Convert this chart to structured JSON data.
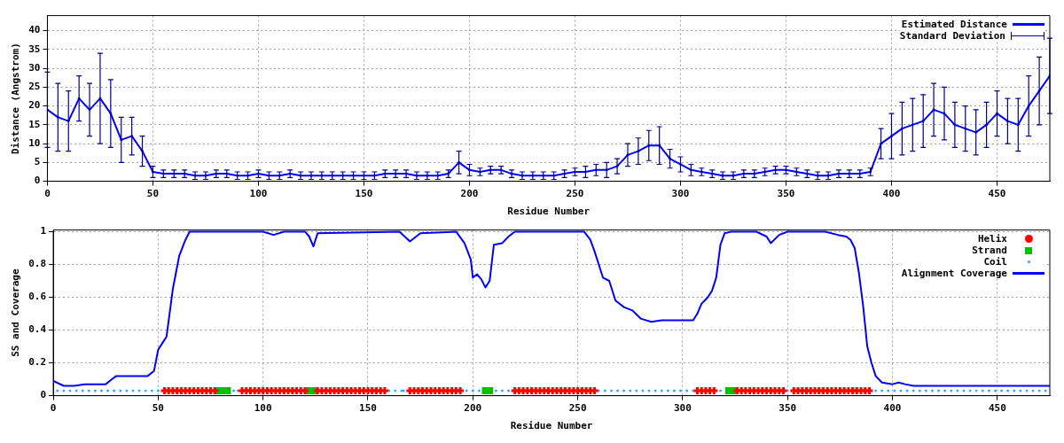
{
  "chart_data": [
    {
      "type": "line",
      "xlabel": "Residue Number",
      "ylabel": "Distance (Angstrom)",
      "xlim": [
        0,
        475
      ],
      "xticks": [
        0,
        50,
        100,
        150,
        200,
        250,
        300,
        350,
        400,
        450
      ],
      "ylim": [
        0,
        44
      ],
      "yticks": [
        0,
        5,
        10,
        15,
        20,
        25,
        30,
        35,
        40
      ],
      "grid": true,
      "legend": "top right",
      "x": [
        0,
        5,
        10,
        15,
        20,
        25,
        30,
        35,
        40,
        45,
        50,
        55,
        60,
        65,
        70,
        75,
        80,
        85,
        90,
        95,
        100,
        105,
        110,
        115,
        120,
        125,
        130,
        135,
        140,
        145,
        150,
        155,
        160,
        165,
        170,
        175,
        180,
        185,
        190,
        195,
        200,
        205,
        210,
        215,
        220,
        225,
        230,
        235,
        240,
        245,
        250,
        255,
        260,
        265,
        270,
        275,
        280,
        285,
        290,
        295,
        300,
        305,
        310,
        315,
        320,
        325,
        330,
        335,
        340,
        345,
        350,
        355,
        360,
        365,
        370,
        375,
        380,
        385,
        390,
        395,
        400,
        405,
        410,
        415,
        420,
        425,
        430,
        435,
        440,
        445,
        450,
        455,
        460,
        465,
        470,
        475
      ],
      "series": [
        {
          "name": "Estimated Distance",
          "color": "#0000ff",
          "marker": "none",
          "values": [
            19,
            17,
            16,
            22,
            19,
            22,
            18,
            11,
            12,
            8,
            2.5,
            2,
            2,
            2,
            1.5,
            1.5,
            2,
            2,
            1.5,
            1.5,
            2,
            1.5,
            1.5,
            2,
            1.5,
            1.5,
            1.5,
            1.5,
            1.5,
            1.5,
            1.5,
            1.5,
            2,
            2,
            2,
            1.5,
            1.5,
            1.5,
            2,
            5,
            3,
            2.5,
            3,
            3,
            2,
            1.5,
            1.5,
            1.5,
            1.5,
            2,
            2.5,
            2.5,
            3,
            3,
            4,
            7,
            8,
            9.5,
            9.5,
            6,
            4.5,
            3,
            2.5,
            2,
            1.5,
            1.5,
            2,
            2,
            2.5,
            3,
            3,
            2.5,
            2,
            1.5,
            1.5,
            2,
            2,
            2,
            2.5,
            10,
            12,
            14,
            15,
            16,
            19,
            18,
            15,
            14,
            13,
            15,
            18,
            16,
            15,
            20,
            24,
            28
          ]
        },
        {
          "name": "Standard Deviation",
          "type": "scatter",
          "color": "#000090",
          "marker": "circle",
          "values": [
            19,
            17,
            16,
            22,
            19,
            22,
            18,
            11,
            12,
            8,
            2.5,
            2,
            2,
            2,
            1.5,
            1.5,
            2,
            2,
            1.5,
            1.5,
            2,
            1.5,
            1.5,
            2,
            1.5,
            1.5,
            1.5,
            1.5,
            1.5,
            1.5,
            1.5,
            1.5,
            2,
            2,
            2,
            1.5,
            1.5,
            1.5,
            2,
            5,
            3,
            2.5,
            3,
            3,
            2,
            1.5,
            1.5,
            1.5,
            1.5,
            2,
            2.5,
            2.5,
            3,
            3,
            4,
            7,
            8,
            9.5,
            9.5,
            6,
            4.5,
            3,
            2.5,
            2,
            1.5,
            1.5,
            2,
            2,
            2.5,
            3,
            3,
            2.5,
            2,
            1.5,
            1.5,
            2,
            2,
            2,
            2.5,
            10,
            12,
            14,
            15,
            16,
            19,
            18,
            15,
            14,
            13,
            15,
            18,
            16,
            15,
            20,
            24,
            28
          ],
          "errors": [
            10,
            9,
            8,
            6,
            7,
            12,
            9,
            6,
            5,
            4,
            1.5,
            1,
            1,
            1,
            1,
            1,
            1,
            1,
            1,
            1,
            1,
            1,
            1,
            1,
            1,
            1,
            1,
            1,
            1,
            1,
            1,
            1,
            1,
            1,
            1,
            1,
            1,
            1,
            1,
            3,
            1.5,
            1,
            1,
            1,
            1,
            1,
            1,
            1,
            1,
            1,
            1,
            1.5,
            1.5,
            2,
            2,
            3,
            3.5,
            4,
            5,
            2.5,
            2,
            1.5,
            1,
            1,
            1,
            1,
            1,
            1,
            1,
            1,
            1,
            1,
            1,
            1,
            1,
            1,
            1,
            1,
            1,
            4,
            6,
            7,
            7,
            7,
            7,
            7,
            6,
            6,
            6,
            6,
            6,
            6,
            7,
            8,
            9,
            10
          ]
        }
      ]
    },
    {
      "type": "line",
      "xlabel": "Residue Number",
      "ylabel": "SS and Coverage",
      "xlim": [
        0,
        475
      ],
      "xticks": [
        0,
        50,
        100,
        150,
        200,
        250,
        300,
        350,
        400,
        450
      ],
      "ylim": [
        0,
        1.01
      ],
      "yticks": [
        0,
        0.2,
        0.4,
        0.6,
        0.8,
        1
      ],
      "grid": true,
      "legend": "top right",
      "series": [
        {
          "name": "Helix",
          "type": "scatter",
          "color": "#ff0000",
          "marker": "cross",
          "x": [
            53,
            55,
            57,
            59,
            61,
            63,
            65,
            67,
            69,
            71,
            73,
            75,
            77,
            90,
            92,
            94,
            96,
            98,
            100,
            102,
            104,
            106,
            108,
            110,
            112,
            114,
            116,
            118,
            120,
            126,
            128,
            130,
            132,
            134,
            136,
            138,
            140,
            142,
            144,
            146,
            148,
            150,
            152,
            154,
            156,
            158,
            170,
            172,
            174,
            176,
            178,
            180,
            182,
            184,
            186,
            188,
            190,
            192,
            194,
            220,
            222,
            224,
            226,
            228,
            230,
            232,
            234,
            236,
            238,
            240,
            242,
            244,
            246,
            248,
            250,
            252,
            254,
            256,
            258,
            307,
            309,
            311,
            313,
            315,
            326,
            328,
            330,
            332,
            334,
            336,
            338,
            340,
            342,
            344,
            346,
            348,
            353,
            355,
            357,
            359,
            361,
            363,
            365,
            367,
            369,
            371,
            373,
            375,
            377,
            379,
            381,
            383,
            385,
            387,
            389
          ],
          "values": [
            0.03,
            0.03,
            0.03,
            0.03,
            0.03,
            0.03,
            0.03,
            0.03,
            0.03,
            0.03,
            0.03,
            0.03,
            0.03,
            0.03,
            0.03,
            0.03,
            0.03,
            0.03,
            0.03,
            0.03,
            0.03,
            0.03,
            0.03,
            0.03,
            0.03,
            0.03,
            0.03,
            0.03,
            0.03,
            0.03,
            0.03,
            0.03,
            0.03,
            0.03,
            0.03,
            0.03,
            0.03,
            0.03,
            0.03,
            0.03,
            0.03,
            0.03,
            0.03,
            0.03,
            0.03,
            0.03,
            0.03,
            0.03,
            0.03,
            0.03,
            0.03,
            0.03,
            0.03,
            0.03,
            0.03,
            0.03,
            0.03,
            0.03,
            0.03,
            0.03,
            0.03,
            0.03,
            0.03,
            0.03,
            0.03,
            0.03,
            0.03,
            0.03,
            0.03,
            0.03,
            0.03,
            0.03,
            0.03,
            0.03,
            0.03,
            0.03,
            0.03,
            0.03,
            0.03,
            0.03,
            0.03,
            0.03,
            0.03,
            0.03,
            0.03,
            0.03,
            0.03,
            0.03,
            0.03,
            0.03,
            0.03,
            0.03,
            0.03,
            0.03,
            0.03,
            0.03,
            0.03,
            0.03,
            0.03,
            0.03,
            0.03,
            0.03,
            0.03,
            0.03,
            0.03,
            0.03,
            0.03,
            0.03,
            0.03,
            0.03,
            0.03,
            0.03,
            0.03,
            0.03,
            0.03
          ]
        },
        {
          "name": "Strand",
          "type": "scatter",
          "color": "#00c000",
          "marker": "square",
          "x": [
            79,
            81,
            83,
            122,
            124,
            206,
            208,
            322,
            324
          ],
          "values": [
            0.03,
            0.03,
            0.03,
            0.03,
            0.03,
            0.03,
            0.03,
            0.03,
            0.03
          ]
        },
        {
          "name": "Coil",
          "type": "scatter",
          "color": "#3399ff",
          "marker": "circle",
          "x": [
            2,
            5,
            8,
            11,
            14,
            17,
            20,
            23,
            26,
            29,
            32,
            35,
            38,
            41,
            44,
            47,
            50,
            86,
            88,
            160,
            163,
            166,
            167,
            197,
            200,
            203,
            211,
            214,
            217,
            260,
            263,
            266,
            269,
            272,
            275,
            278,
            281,
            284,
            287,
            290,
            293,
            296,
            299,
            302,
            305,
            318,
            350,
            392,
            395,
            398,
            401,
            404,
            407,
            410,
            413,
            416,
            419,
            422,
            425,
            428,
            431,
            434,
            437,
            440,
            443,
            446,
            449,
            452,
            455,
            458,
            461,
            464,
            467,
            470,
            473
          ],
          "values": [
            0.03,
            0.03,
            0.03,
            0.03,
            0.03,
            0.03,
            0.03,
            0.03,
            0.03,
            0.03,
            0.03,
            0.03,
            0.03,
            0.03,
            0.03,
            0.03,
            0.03,
            0.03,
            0.03,
            0.03,
            0.03,
            0.03,
            0.03,
            0.03,
            0.03,
            0.03,
            0.03,
            0.03,
            0.03,
            0.03,
            0.03,
            0.03,
            0.03,
            0.03,
            0.03,
            0.03,
            0.03,
            0.03,
            0.03,
            0.03,
            0.03,
            0.03,
            0.03,
            0.03,
            0.03,
            0.03,
            0.03,
            0.03,
            0.03,
            0.03,
            0.03,
            0.03,
            0.03,
            0.03,
            0.03,
            0.03,
            0.03,
            0.03,
            0.03,
            0.03,
            0.03,
            0.03,
            0.03,
            0.03,
            0.03,
            0.03,
            0.03,
            0.03,
            0.03,
            0.03,
            0.03,
            0.03,
            0.03,
            0.03,
            0.03
          ]
        },
        {
          "name": "Alignment Coverage",
          "color": "#0000ff",
          "marker": "none",
          "x": [
            0,
            5,
            10,
            15,
            25,
            28,
            30,
            45,
            48,
            50,
            53,
            54,
            57,
            60,
            63,
            65,
            100,
            105,
            110,
            120,
            122,
            124,
            126,
            165,
            170,
            175,
            192,
            196,
            199,
            200,
            202,
            204,
            206,
            208,
            210,
            214,
            217,
            220,
            253,
            256,
            258,
            262,
            265,
            268,
            272,
            276,
            280,
            285,
            290,
            300,
            305,
            307,
            309,
            312,
            314,
            316,
            318,
            320,
            323,
            335,
            340,
            342,
            346,
            350,
            368,
            374,
            378,
            380,
            382,
            384,
            386,
            388,
            390,
            392,
            395,
            400,
            403,
            406,
            410,
            420,
            475
          ],
          "values": [
            0.09,
            0.06,
            0.06,
            0.07,
            0.07,
            0.1,
            0.12,
            0.12,
            0.15,
            0.28,
            0.34,
            0.36,
            0.65,
            0.85,
            0.95,
            1,
            1,
            0.98,
            1,
            1,
            0.97,
            0.91,
            0.99,
            1,
            0.94,
            0.99,
            1,
            0.93,
            0.83,
            0.72,
            0.74,
            0.71,
            0.66,
            0.7,
            0.92,
            0.93,
            0.97,
            1,
            1,
            0.95,
            0.88,
            0.72,
            0.7,
            0.58,
            0.54,
            0.52,
            0.47,
            0.45,
            0.46,
            0.46,
            0.46,
            0.5,
            0.56,
            0.6,
            0.64,
            0.72,
            0.92,
            0.99,
            1,
            1,
            0.97,
            0.93,
            0.98,
            1,
            1,
            0.98,
            0.97,
            0.95,
            0.9,
            0.75,
            0.55,
            0.3,
            0.2,
            0.12,
            0.08,
            0.07,
            0.08,
            0.07,
            0.06,
            0.06,
            0.06
          ]
        }
      ]
    }
  ]
}
